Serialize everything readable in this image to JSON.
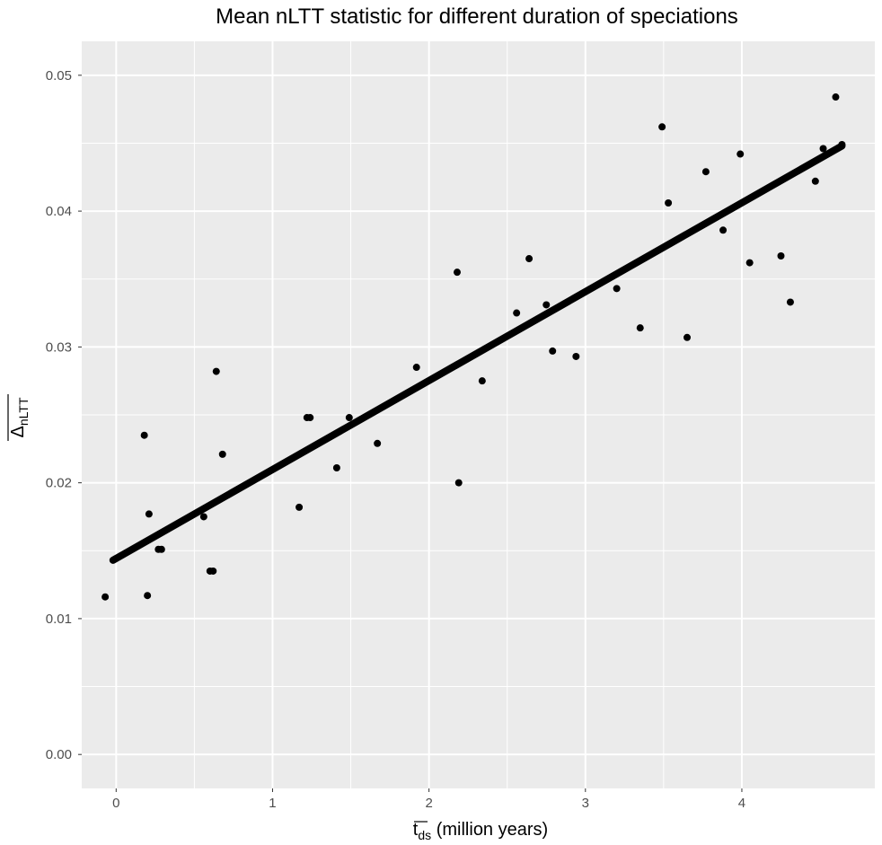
{
  "chart_data": {
    "type": "scatter",
    "title": "Mean nLTT statistic for different duration of speciations",
    "xlabel": {
      "main": "t",
      "subscript": "ds",
      "suffix": "(million years)"
    },
    "ylabel": {
      "main": "Δ",
      "subscript": "nLTT"
    },
    "xlim": [
      -0.22,
      4.85
    ],
    "ylim": [
      -0.0025,
      0.0525
    ],
    "x_ticks": [
      0,
      1,
      2,
      3,
      4
    ],
    "x_tick_labels": [
      "0",
      "1",
      "2",
      "3",
      "4"
    ],
    "y_ticks": [
      0.0,
      0.01,
      0.02,
      0.03,
      0.04,
      0.05
    ],
    "y_tick_labels": [
      "0.00",
      "0.01",
      "0.02",
      "0.03",
      "0.04",
      "0.05"
    ],
    "grid": true,
    "points": [
      {
        "x": -0.07,
        "y": 0.0116
      },
      {
        "x": 0.18,
        "y": 0.0235
      },
      {
        "x": 0.2,
        "y": 0.0117
      },
      {
        "x": 0.21,
        "y": 0.0177
      },
      {
        "x": 0.27,
        "y": 0.0151
      },
      {
        "x": 0.29,
        "y": 0.0151
      },
      {
        "x": 0.56,
        "y": 0.0175
      },
      {
        "x": 0.6,
        "y": 0.0135
      },
      {
        "x": 0.62,
        "y": 0.0135
      },
      {
        "x": 0.64,
        "y": 0.0282
      },
      {
        "x": 0.68,
        "y": 0.0221
      },
      {
        "x": 1.17,
        "y": 0.0182
      },
      {
        "x": 1.22,
        "y": 0.0248
      },
      {
        "x": 1.24,
        "y": 0.0248
      },
      {
        "x": 1.41,
        "y": 0.0211
      },
      {
        "x": 1.49,
        "y": 0.0248
      },
      {
        "x": 1.67,
        "y": 0.0229
      },
      {
        "x": 1.92,
        "y": 0.0285
      },
      {
        "x": 2.18,
        "y": 0.0355
      },
      {
        "x": 2.19,
        "y": 0.02
      },
      {
        "x": 2.34,
        "y": 0.0275
      },
      {
        "x": 2.56,
        "y": 0.0325
      },
      {
        "x": 2.64,
        "y": 0.0365
      },
      {
        "x": 2.75,
        "y": 0.0331
      },
      {
        "x": 2.79,
        "y": 0.0297
      },
      {
        "x": 2.94,
        "y": 0.0293
      },
      {
        "x": 3.2,
        "y": 0.0343
      },
      {
        "x": 3.35,
        "y": 0.0314
      },
      {
        "x": 3.49,
        "y": 0.0462
      },
      {
        "x": 3.53,
        "y": 0.0406
      },
      {
        "x": 3.65,
        "y": 0.0307
      },
      {
        "x": 3.77,
        "y": 0.0429
      },
      {
        "x": 3.88,
        "y": 0.0386
      },
      {
        "x": 3.99,
        "y": 0.0442
      },
      {
        "x": 4.05,
        "y": 0.0362
      },
      {
        "x": 4.25,
        "y": 0.0367
      },
      {
        "x": 4.31,
        "y": 0.0333
      },
      {
        "x": 4.47,
        "y": 0.0422
      },
      {
        "x": 4.52,
        "y": 0.0446
      },
      {
        "x": 4.6,
        "y": 0.0484
      },
      {
        "x": 4.64,
        "y": 0.0449
      }
    ],
    "fit_line": {
      "x": [
        -0.02,
        4.64
      ],
      "y": [
        0.0143,
        0.0448
      ]
    }
  }
}
